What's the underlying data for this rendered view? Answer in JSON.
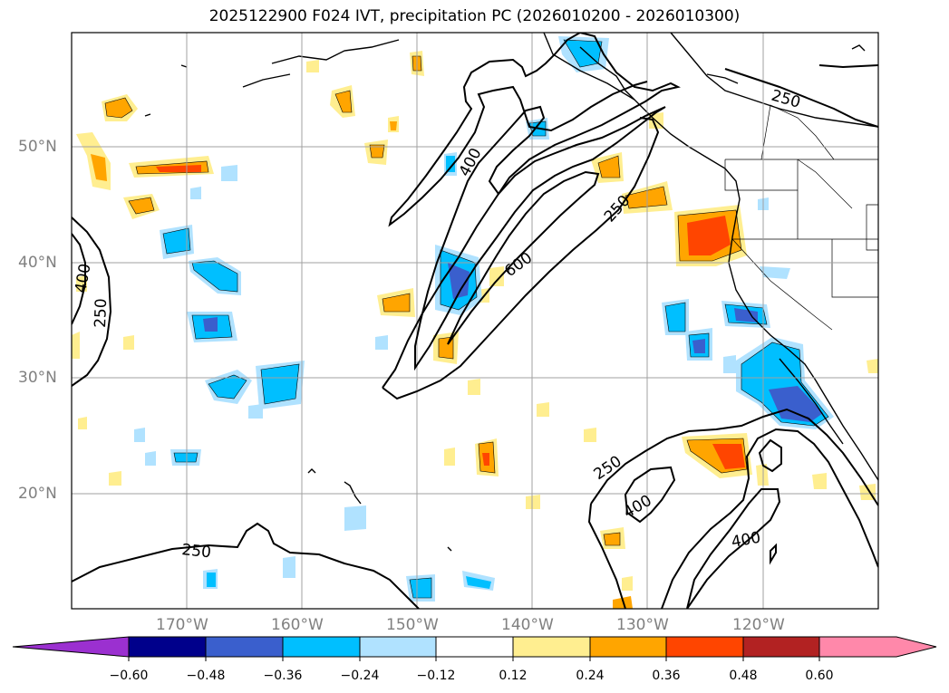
{
  "title": "2025122900 F024 IVT, precipitation PC (2026010200 - 2026010300)",
  "map": {
    "lat_labels": [
      "50°N",
      "40°N",
      "30°N",
      "20°N"
    ],
    "lon_labels": [
      "170°W",
      "160°W",
      "150°W",
      "140°W",
      "130°W",
      "120°W"
    ],
    "contour_labels": [
      "250",
      "250",
      "400",
      "400",
      "250",
      "600",
      "250",
      "250",
      "400",
      "400"
    ],
    "colors": {
      "land_line": "#000000",
      "grid": "#a0a0a0"
    }
  },
  "colorbar": {
    "ticks": [
      "−0.60",
      "−0.48",
      "−0.36",
      "−0.24",
      "−0.12",
      "0.12",
      "0.24",
      "0.36",
      "0.48",
      "0.60"
    ],
    "colors": [
      "#9b30d0",
      "#00008b",
      "#3a5fcd",
      "#00bfff",
      "#b0e2ff",
      "#ffffff",
      "#ffee90",
      "#ffa500",
      "#ff4500",
      "#b22222",
      "#ff88aa"
    ]
  }
}
